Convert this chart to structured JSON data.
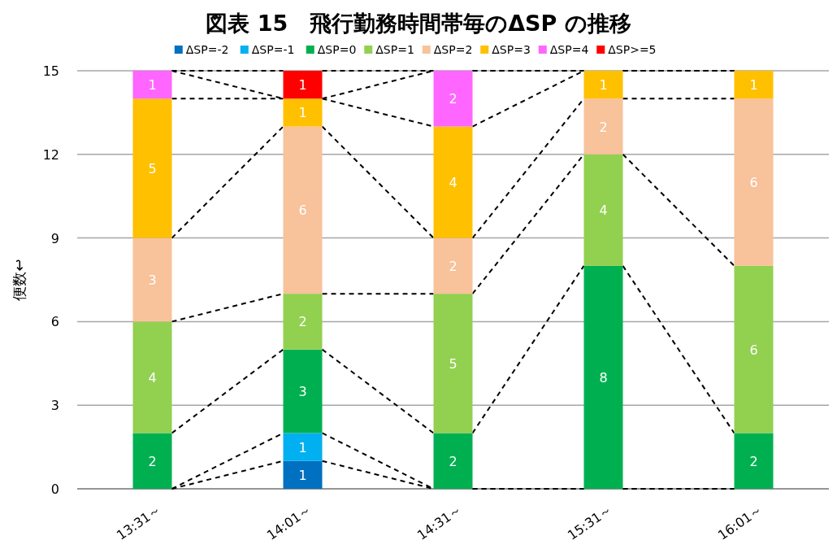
{
  "chart_data": {
    "type": "bar",
    "stacked": true,
    "title": "図表 15　飛行勤務時間帯毎のΔSP の推移",
    "ylabel": "便数↩",
    "categories": [
      "13:31～",
      "14:01～",
      "14:31～",
      "15:31～",
      "16:01～"
    ],
    "series": [
      {
        "name": "ΔSP=-2",
        "color": "#0070c0",
        "values": [
          null,
          1,
          null,
          null,
          null
        ]
      },
      {
        "name": "ΔSP=-1",
        "color": "#00b0f0",
        "values": [
          null,
          1,
          null,
          null,
          null
        ]
      },
      {
        "name": "ΔSP=0",
        "color": "#00b050",
        "values": [
          2,
          3,
          2,
          8,
          2
        ]
      },
      {
        "name": "ΔSP=1",
        "color": "#92d050",
        "values": [
          4,
          2,
          5,
          4,
          6
        ]
      },
      {
        "name": "ΔSP=2",
        "color": "#f8c29a",
        "values": [
          3,
          6,
          2,
          2,
          6
        ]
      },
      {
        "name": "ΔSP=3",
        "color": "#ffc000",
        "values": [
          5,
          1,
          4,
          1,
          1
        ]
      },
      {
        "name": "ΔSP=4",
        "color": "#ff66ff",
        "values": [
          1,
          null,
          2,
          null,
          null
        ]
      },
      {
        "name": "ΔSP>=5",
        "color": "#ff0000",
        "values": [
          null,
          1,
          null,
          null,
          null
        ]
      }
    ],
    "ylim": [
      0,
      15
    ],
    "yticks": [
      0,
      3,
      6,
      9,
      12,
      15
    ],
    "grid": "y",
    "legend": "top",
    "data_labels": true,
    "line_style": "dashed"
  }
}
